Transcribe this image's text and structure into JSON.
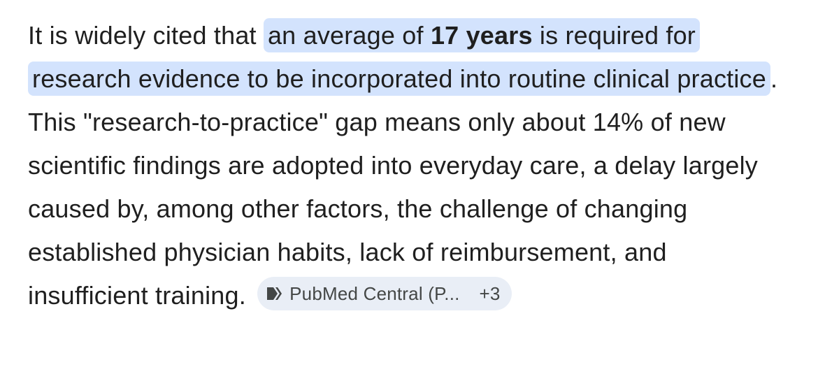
{
  "paragraph": {
    "lead": "It is widely cited that",
    "highlight_before": "an average of",
    "highlight_bold": "17 years",
    "highlight_after": "is required for research evidence to be incorporated into routine clinical practice",
    "body": ". This \"research-to-practice\" gap means only about 14% of new scientific findings are adopted into everyday care, a delay largely caused by, among other factors, the challenge of changing established physician habits, lack of reimbursement, and insufficient training."
  },
  "citation": {
    "source": "PubMed Central (P...",
    "more": "+3"
  }
}
